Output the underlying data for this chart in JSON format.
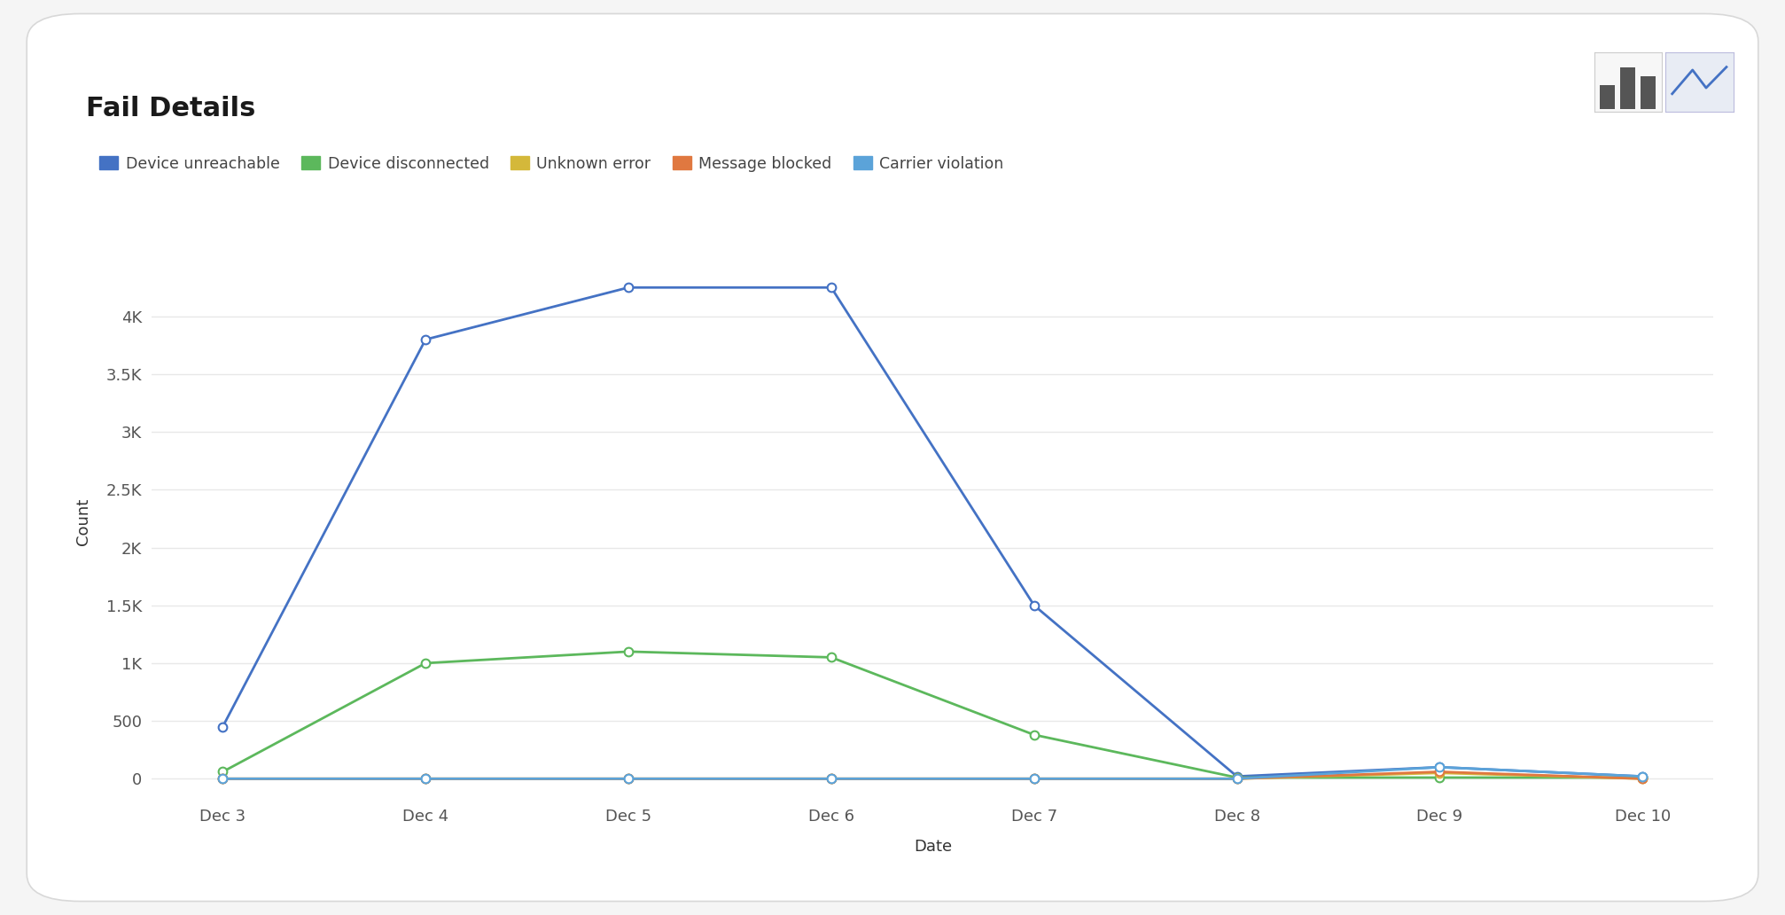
{
  "title": "Fail Details",
  "xlabel": "Date",
  "ylabel": "Count",
  "background_color": "#f5f5f5",
  "card_color": "#ffffff",
  "plot_bg_color": "#ffffff",
  "grid_color": "#e8e8e8",
  "x_labels": [
    "Dec 3",
    "Dec 4",
    "Dec 5",
    "Dec 6",
    "Dec 7",
    "Dec 8",
    "Dec 9",
    "Dec 10"
  ],
  "series": [
    {
      "name": "Device unreachable",
      "color": "#4472c4",
      "values": [
        450,
        3800,
        4250,
        4250,
        1500,
        20,
        100,
        20
      ],
      "linewidth": 2.0
    },
    {
      "name": "Device disconnected",
      "color": "#5cb85c",
      "values": [
        60,
        1000,
        1100,
        1050,
        380,
        10,
        10,
        10
      ],
      "linewidth": 2.0
    },
    {
      "name": "Unknown error",
      "color": "#d4b83a",
      "values": [
        0,
        0,
        0,
        0,
        0,
        0,
        50,
        0
      ],
      "linewidth": 2.0
    },
    {
      "name": "Message blocked",
      "color": "#e07840",
      "values": [
        0,
        0,
        0,
        0,
        0,
        0,
        60,
        0
      ],
      "linewidth": 2.0
    },
    {
      "name": "Carrier violation",
      "color": "#5ba3d9",
      "values": [
        0,
        0,
        0,
        0,
        0,
        0,
        100,
        20
      ],
      "linewidth": 2.0
    }
  ],
  "yticks": [
    0,
    500,
    1000,
    1500,
    2000,
    2500,
    3000,
    3500,
    4000
  ],
  "ytick_labels": [
    "0",
    "500",
    "1K",
    "1.5K",
    "2K",
    "2.5K",
    "3K",
    "3.5K",
    "4K"
  ],
  "ylim": [
    -150,
    4600
  ],
  "title_fontsize": 22,
  "axis_label_fontsize": 13,
  "tick_fontsize": 13,
  "legend_fontsize": 12.5
}
